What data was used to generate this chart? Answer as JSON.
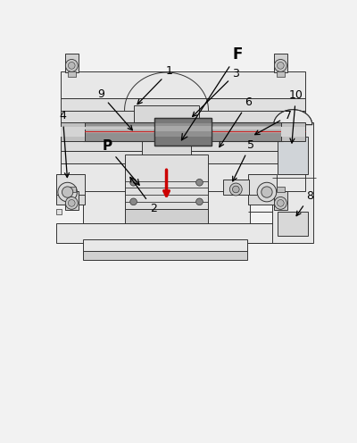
{
  "bg_color": "#f2f2f2",
  "line_color": "#333333",
  "fig_w": 4.0,
  "fig_h": 4.96,
  "dpi": 100
}
